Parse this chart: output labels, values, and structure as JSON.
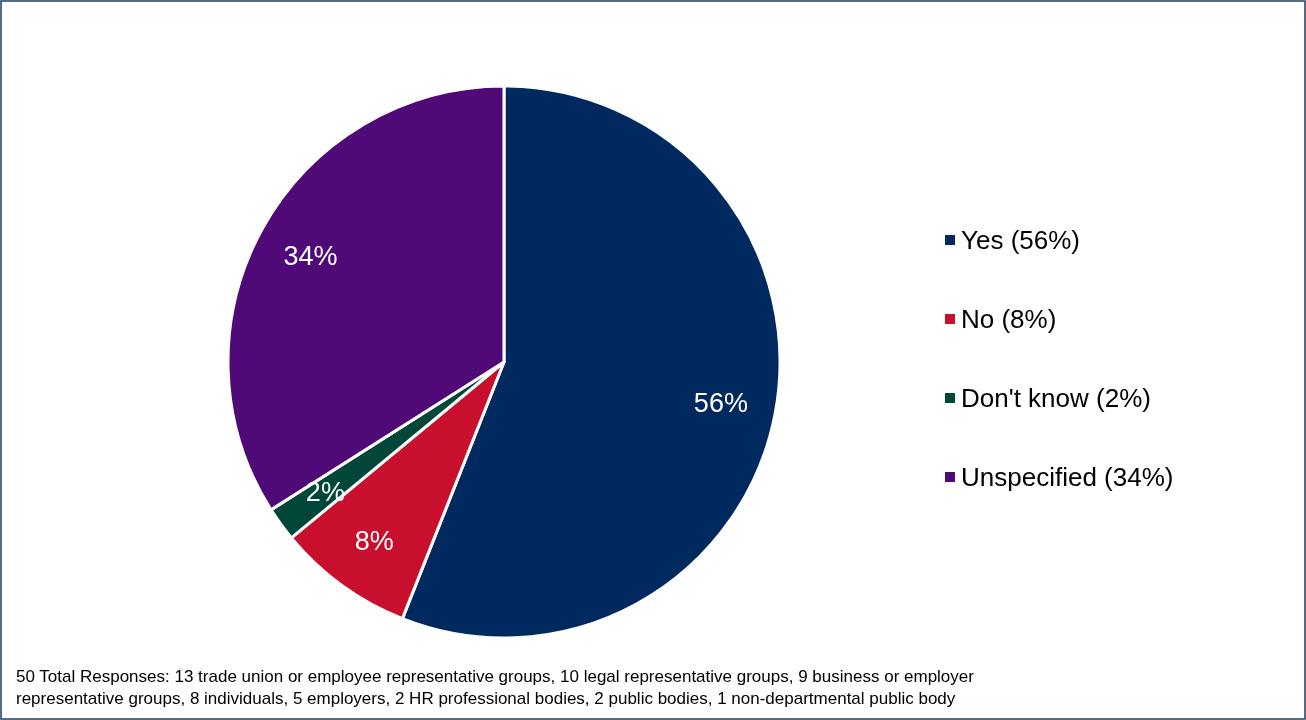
{
  "chart_data": {
    "type": "pie",
    "categories": [
      "Yes (56%)",
      "No (8%)",
      "Don't know (2%)",
      "Unspecified (34%)"
    ],
    "values": [
      56,
      8,
      2,
      34
    ],
    "colors": [
      "#002960",
      "#c8102e",
      "#00473a",
      "#500a78"
    ],
    "value_labels": [
      "56%",
      "8%",
      "2%",
      "34%"
    ],
    "legend": "right",
    "annotations": [
      "50 Total Responses: 13 trade union or employee representative groups, 10 legal representative groups, 9 business or employer representative groups, 8 individuals, 5 employers, 2 HR professional bodies, 2 public bodies, 1 non-departmental public body"
    ]
  }
}
